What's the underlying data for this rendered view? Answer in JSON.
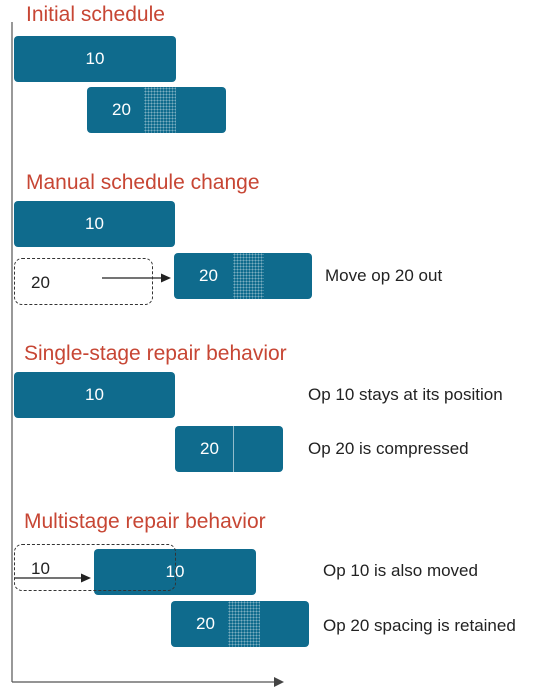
{
  "sections": [
    {
      "title": "Initial schedule"
    },
    {
      "title": "Manual schedule change",
      "note": "Move op 20 out"
    },
    {
      "title": "Single-stage repair behavior",
      "notes": [
        "Op 10 stays at its position",
        "Op 20 is compressed"
      ]
    },
    {
      "title": "Multistage repair behavior",
      "notes": [
        "Op 10 is also moved",
        "Op 20 spacing is retained"
      ]
    }
  ],
  "ops": {
    "op10": "10",
    "op20": "20"
  },
  "colors": {
    "bar": "#0f6b8d",
    "heading": "#c74634"
  }
}
